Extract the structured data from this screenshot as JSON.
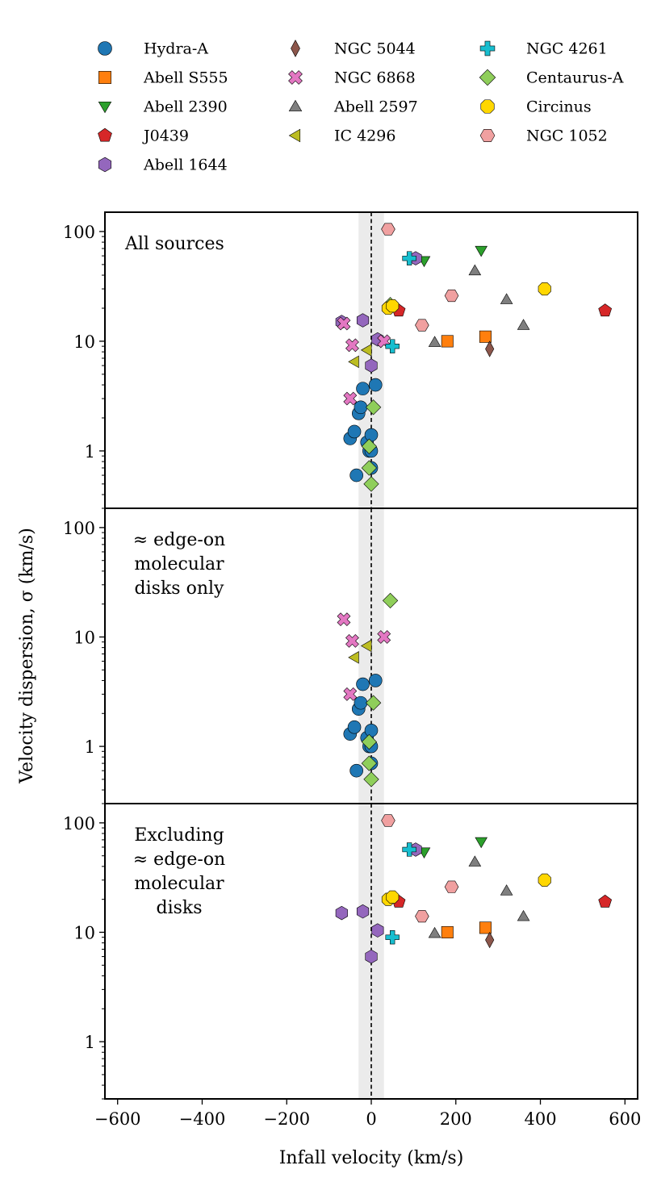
{
  "chart_data": {
    "type": "scatter",
    "xlabel": "Infall velocity (km/s)",
    "ylabel": "Velocity dispersion, σ (km/s)",
    "xlim": [
      -630,
      630
    ],
    "ylim": [
      0.3,
      150
    ],
    "yscale": "log",
    "xticks": [
      -600,
      -400,
      -200,
      0,
      200,
      400,
      600
    ],
    "xtick_labels": [
      "−600",
      "−400",
      "−200",
      "0",
      "200",
      "400",
      "600"
    ],
    "yticks": [
      1,
      10,
      100
    ],
    "ytick_labels": [
      "1",
      "10",
      "100"
    ],
    "shaded_band": [
      -30,
      30
    ],
    "reference_line_x": 0,
    "series_styles": [
      {
        "name": "Hydra-A",
        "marker": "circle",
        "color": "#1f77b4"
      },
      {
        "name": "Abell S555",
        "marker": "square",
        "color": "#ff7f0e"
      },
      {
        "name": "Abell 2390",
        "marker": "triangle-down",
        "color": "#2ca02c"
      },
      {
        "name": "J0439",
        "marker": "pentagon",
        "color": "#d62728"
      },
      {
        "name": "Abell 1644",
        "marker": "hexagon",
        "color": "#9467bd"
      },
      {
        "name": "NGC 5044",
        "marker": "thin-diamond",
        "color": "#8c564b"
      },
      {
        "name": "NGC 6868",
        "marker": "x-filled",
        "color": "#e377c2"
      },
      {
        "name": "Abell 2597",
        "marker": "triangle-up",
        "color": "#7f7f7f"
      },
      {
        "name": "IC 4296",
        "marker": "triangle-left",
        "color": "#bcbd22"
      },
      {
        "name": "NGC 4261",
        "marker": "plus-filled",
        "color": "#17becf"
      },
      {
        "name": "Centaurus-A",
        "marker": "diamond",
        "color": "#8fce5a"
      },
      {
        "name": "Circinus",
        "marker": "octagon",
        "color": "#ffd700"
      },
      {
        "name": "NGC 1052",
        "marker": "hexagon2",
        "color": "#f0a0a0"
      }
    ],
    "panels": [
      {
        "title": [
          "All sources"
        ],
        "series": [
          {
            "name": "Hydra-A",
            "x": [
              -50,
              -40,
              -35,
              -30,
              -25,
              -20,
              -10,
              -5,
              0,
              0,
              0,
              10
            ],
            "y": [
              1.3,
              1.5,
              0.6,
              2.2,
              2.5,
              3.7,
              1.2,
              1.0,
              1.4,
              0.7,
              1.0,
              4.0
            ]
          },
          {
            "name": "Abell S555",
            "x": [
              180,
              270
            ],
            "y": [
              10,
              11
            ]
          },
          {
            "name": "Abell 2390",
            "x": [
              125,
              260
            ],
            "y": [
              54,
              67
            ]
          },
          {
            "name": "J0439",
            "x": [
              65,
              553
            ],
            "y": [
              19,
              19
            ]
          },
          {
            "name": "Abell 1644",
            "x": [
              -70,
              -20,
              0,
              15,
              105
            ],
            "y": [
              15,
              15.5,
              6,
              10.4,
              57
            ]
          },
          {
            "name": "NGC 5044",
            "x": [
              280
            ],
            "y": [
              8.5
            ]
          },
          {
            "name": "NGC 6868",
            "x": [
              -65,
              -45,
              -50,
              30
            ],
            "y": [
              14.5,
              9.2,
              3.0,
              10
            ]
          },
          {
            "name": "Abell 2597",
            "x": [
              150,
              245,
              320,
              360
            ],
            "y": [
              9.8,
              44,
              24,
              14
            ]
          },
          {
            "name": "IC 4296",
            "x": [
              -40,
              -10
            ],
            "y": [
              6.5,
              8.3
            ]
          },
          {
            "name": "NGC 4261",
            "x": [
              50,
              90
            ],
            "y": [
              9,
              57
            ]
          },
          {
            "name": "Centaurus-A",
            "x": [
              -5,
              -5,
              0,
              5,
              45
            ],
            "y": [
              0.7,
              1.1,
              0.5,
              2.5,
              21.5
            ]
          },
          {
            "name": "Circinus",
            "x": [
              40,
              50,
              410
            ],
            "y": [
              20,
              21,
              30
            ]
          },
          {
            "name": "NGC 1052",
            "x": [
              40,
              120,
              190
            ],
            "y": [
              105,
              14,
              26
            ]
          }
        ]
      },
      {
        "title": [
          "≈ edge-on",
          "molecular",
          "disks only"
        ],
        "series": [
          {
            "name": "Hydra-A",
            "x": [
              -50,
              -40,
              -35,
              -30,
              -25,
              -20,
              -10,
              -5,
              0,
              0,
              0,
              10
            ],
            "y": [
              1.3,
              1.5,
              0.6,
              2.2,
              2.5,
              3.7,
              1.2,
              1.0,
              1.4,
              0.7,
              1.0,
              4.0
            ]
          },
          {
            "name": "NGC 6868",
            "x": [
              -65,
              -45,
              -50,
              30
            ],
            "y": [
              14.5,
              9.2,
              3.0,
              10
            ]
          },
          {
            "name": "IC 4296",
            "x": [
              -40,
              -10
            ],
            "y": [
              6.5,
              8.3
            ]
          },
          {
            "name": "Centaurus-A",
            "x": [
              -5,
              -5,
              0,
              5,
              45
            ],
            "y": [
              0.7,
              1.1,
              0.5,
              2.5,
              21.5
            ]
          }
        ]
      },
      {
        "title": [
          "Excluding",
          "≈ edge-on",
          "molecular",
          "disks"
        ],
        "series": [
          {
            "name": "Abell S555",
            "x": [
              180,
              270
            ],
            "y": [
              10,
              11
            ]
          },
          {
            "name": "Abell 2390",
            "x": [
              125,
              260
            ],
            "y": [
              54,
              67
            ]
          },
          {
            "name": "J0439",
            "x": [
              65,
              553
            ],
            "y": [
              19,
              19
            ]
          },
          {
            "name": "Abell 1644",
            "x": [
              -70,
              -20,
              0,
              15,
              105
            ],
            "y": [
              15,
              15.5,
              6,
              10.4,
              57
            ]
          },
          {
            "name": "NGC 5044",
            "x": [
              280
            ],
            "y": [
              8.5
            ]
          },
          {
            "name": "Abell 2597",
            "x": [
              150,
              245,
              320,
              360
            ],
            "y": [
              9.8,
              44,
              24,
              14
            ]
          },
          {
            "name": "NGC 4261",
            "x": [
              50,
              90
            ],
            "y": [
              9,
              57
            ]
          },
          {
            "name": "Circinus",
            "x": [
              40,
              50,
              410
            ],
            "y": [
              20,
              21,
              30
            ]
          },
          {
            "name": "NGC 1052",
            "x": [
              40,
              120,
              190
            ],
            "y": [
              105,
              14,
              26
            ]
          }
        ]
      }
    ]
  }
}
